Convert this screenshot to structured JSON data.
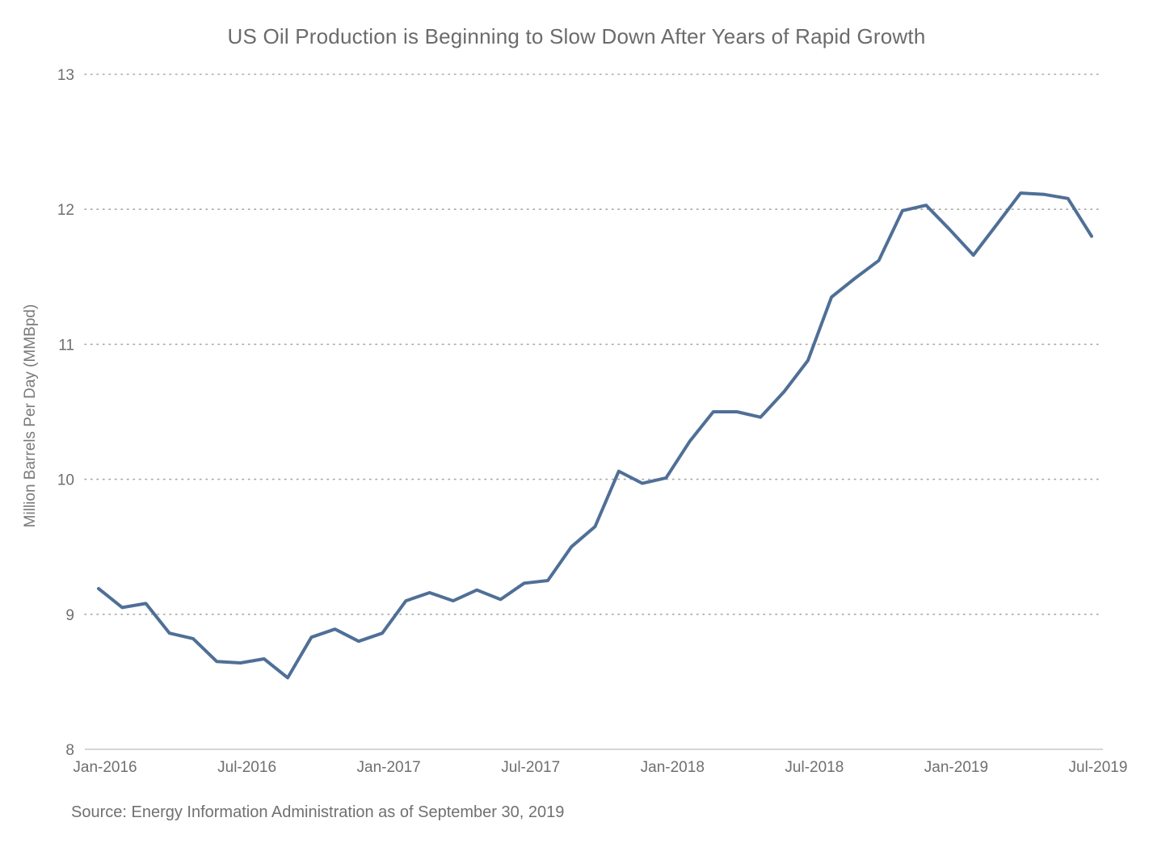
{
  "chart_data": {
    "type": "line",
    "title": "US Oil Production is Beginning to Slow Down After Years of Rapid Growth",
    "ylabel": "Million Barrels Per Day (MMBpd)",
    "xlabel": "",
    "source": "Source: Energy Information Administration as of September 30, 2019",
    "ylim": [
      8,
      13
    ],
    "yticks": [
      8,
      9,
      10,
      11,
      12,
      13
    ],
    "grid": "horizontal dotted",
    "line_color": "#4f6f96",
    "x_tick_labels": [
      "Jan-2016",
      "Jul-2016",
      "Jan-2017",
      "Jul-2017",
      "Jan-2018",
      "Jul-2018",
      "Jan-2019",
      "Jul-2019"
    ],
    "x": [
      "Jan-2016",
      "Feb-2016",
      "Mar-2016",
      "Apr-2016",
      "May-2016",
      "Jun-2016",
      "Jul-2016",
      "Aug-2016",
      "Sep-2016",
      "Oct-2016",
      "Nov-2016",
      "Dec-2016",
      "Jan-2017",
      "Feb-2017",
      "Mar-2017",
      "Apr-2017",
      "May-2017",
      "Jun-2017",
      "Jul-2017",
      "Aug-2017",
      "Sep-2017",
      "Oct-2017",
      "Nov-2017",
      "Dec-2017",
      "Jan-2018",
      "Feb-2018",
      "Mar-2018",
      "Apr-2018",
      "May-2018",
      "Jun-2018",
      "Jul-2018",
      "Aug-2018",
      "Sep-2018",
      "Oct-2018",
      "Nov-2018",
      "Dec-2018",
      "Jan-2019",
      "Feb-2019",
      "Mar-2019",
      "Apr-2019",
      "May-2019",
      "Jun-2019",
      "Jul-2019"
    ],
    "series": [
      {
        "values": [
          9.19,
          9.05,
          9.08,
          8.86,
          8.82,
          8.65,
          8.64,
          8.67,
          8.53,
          8.83,
          8.89,
          8.8,
          8.86,
          9.1,
          9.16,
          9.1,
          9.18,
          9.11,
          9.23,
          9.25,
          9.5,
          9.65,
          10.06,
          9.97,
          10.01,
          10.28,
          10.5,
          10.5,
          10.46,
          10.65,
          10.88,
          11.35,
          11.49,
          11.62,
          11.99,
          12.03,
          11.85,
          11.66,
          11.89,
          12.12,
          12.11,
          12.08,
          11.8
        ]
      }
    ]
  }
}
